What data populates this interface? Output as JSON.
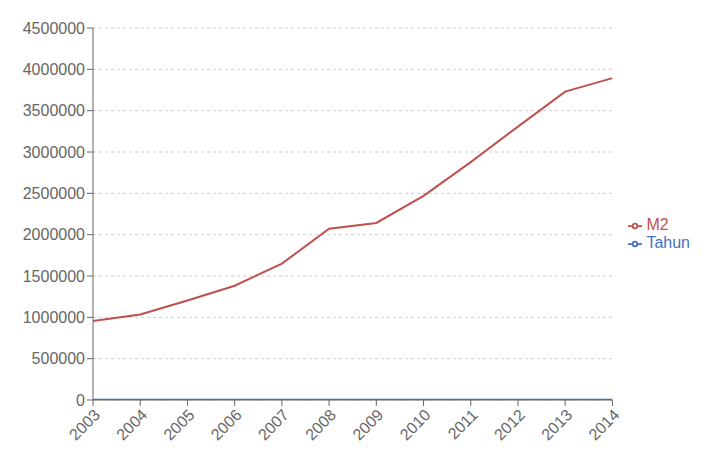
{
  "chart_data": {
    "type": "line",
    "x": [
      2003,
      2004,
      2005,
      2006,
      2007,
      2008,
      2009,
      2010,
      2011,
      2012,
      2013,
      2014
    ],
    "series": [
      {
        "name": "Tahun",
        "color": "#4472C4",
        "values": [
          2003,
          2004,
          2005,
          2006,
          2007,
          2008,
          2009,
          2010,
          2011,
          2012,
          2013,
          2014
        ]
      },
      {
        "name": "M2",
        "color": "#C0504D",
        "values": [
          955400,
          1033527,
          1202762,
          1382493,
          1649662,
          2072032,
          2141384,
          2469399,
          2877220,
          3307508,
          3730197,
          3893766
        ]
      }
    ],
    "xlim": [
      2003,
      2014
    ],
    "xticks": [
      2003,
      2004,
      2005,
      2006,
      2007,
      2008,
      2009,
      2010,
      2011,
      2012,
      2013,
      2014
    ],
    "ylim": [
      0,
      4500000
    ],
    "yticks": [
      0,
      500000,
      1000000,
      1500000,
      2000000,
      2500000,
      3000000,
      3500000,
      4000000,
      4500000
    ],
    "grid": "y",
    "legend": "right"
  }
}
